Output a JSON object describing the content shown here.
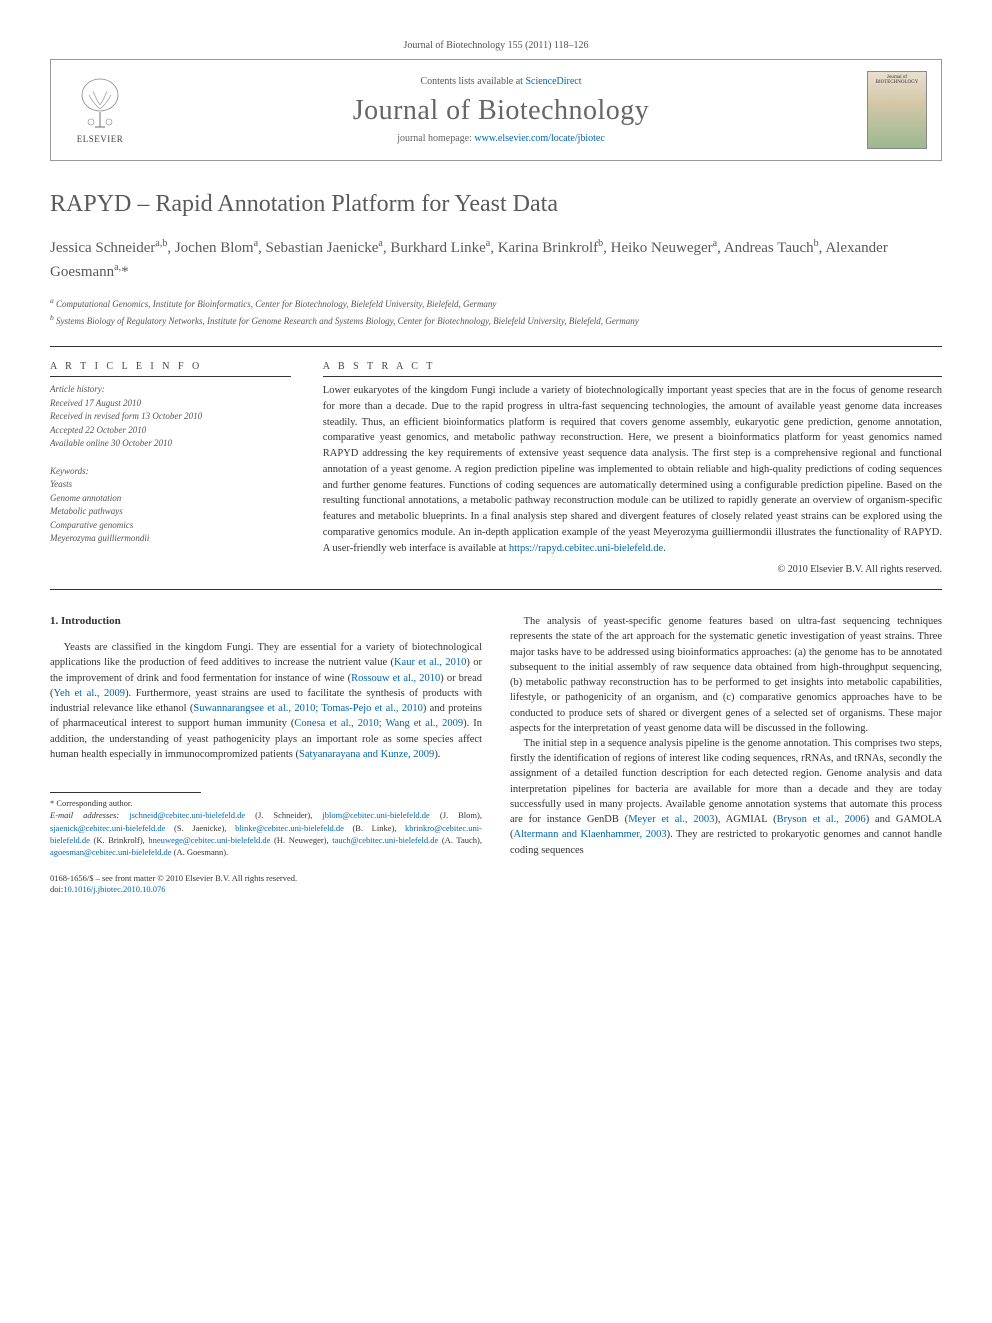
{
  "header": {
    "citation": "Journal of Biotechnology 155 (2011) 118–126",
    "contents_prefix": "Contents lists available at ",
    "contents_link_text": "ScienceDirect",
    "journal_name": "Journal of Biotechnology",
    "homepage_prefix": "journal homepage: ",
    "homepage_url": "www.elsevier.com/locate/jbiotec",
    "elsevier_label": "ELSEVIER",
    "cover_text": "Journal of BIOTECHNOLOGY"
  },
  "article": {
    "title": "RAPYD – Rapid Annotation Platform for Yeast Data",
    "authors_html": "Jessica Schneider<sup>a,b</sup>, Jochen Blom<sup>a</sup>, Sebastian Jaenicke<sup>a</sup>, Burkhard Linke<sup>a</sup>, Karina Brinkrolf<sup>b</sup>, Heiko Neuweger<sup>a</sup>, Andreas Tauch<sup>b</sup>, Alexander Goesmann<sup>a,</sup>*",
    "affiliations": {
      "a": "Computational Genomics, Institute for Bioinformatics, Center for Biotechnology, Bielefeld University, Bielefeld, Germany",
      "b": "Systems Biology of Regulatory Networks, Institute for Genome Research and Systems Biology, Center for Biotechnology, Bielefeld University, Bielefeld, Germany"
    }
  },
  "info": {
    "label": "A R T I C L E   I N F O",
    "history_label": "Article history:",
    "received": "Received 17 August 2010",
    "revised": "Received in revised form 13 October 2010",
    "accepted": "Accepted 22 October 2010",
    "online": "Available online 30 October 2010",
    "keywords_label": "Keywords:",
    "keywords": [
      "Yeasts",
      "Genome annotation",
      "Metabolic pathways",
      "Comparative genomics",
      "Meyerozyma guilliermondii"
    ]
  },
  "abstract": {
    "label": "A B S T R A C T",
    "text": "Lower eukaryotes of the kingdom Fungi include a variety of biotechnologically important yeast species that are in the focus of genome research for more than a decade. Due to the rapid progress in ultra-fast sequencing technologies, the amount of available yeast genome data increases steadily. Thus, an efficient bioinformatics platform is required that covers genome assembly, eukaryotic gene prediction, genome annotation, comparative yeast genomics, and metabolic pathway reconstruction. Here, we present a bioinformatics platform for yeast genomics named RAPYD addressing the key requirements of extensive yeast sequence data analysis. The first step is a comprehensive regional and functional annotation of a yeast genome. A region prediction pipeline was implemented to obtain reliable and high-quality predictions of coding sequences and further genome features. Functions of coding sequences are automatically determined using a configurable prediction pipeline. Based on the resulting functional annotations, a metabolic pathway reconstruction module can be utilized to rapidly generate an overview of organism-specific features and metabolic blueprints. In a final analysis step shared and divergent features of closely related yeast strains can be explored using the comparative genomics module. An in-depth application example of the yeast Meyerozyma guilliermondii illustrates the functionality of RAPYD. A user-friendly web interface is available at ",
    "url": "https://rapyd.cebitec.uni-bielefeld.de",
    "copyright": "© 2010 Elsevier B.V. All rights reserved."
  },
  "body": {
    "section1_heading": "1. Introduction",
    "col1_p1_a": "Yeasts are classified in the kingdom Fungi. They are essential for a variety of biotechnological applications like the production of feed additives to increase the nutrient value (",
    "col1_p1_ref1": "Kaur et al., 2010",
    "col1_p1_b": ") or the improvement of drink and food fermentation for instance of wine (",
    "col1_p1_ref2": "Rossouw et al., 2010",
    "col1_p1_c": ") or bread (",
    "col1_p1_ref3": "Yeh et al., 2009",
    "col1_p1_d": "). Furthermore, yeast strains are used to facilitate the synthesis of products with industrial relevance like ethanol (",
    "col1_p1_ref4": "Suwannarangsee et al., 2010; Tomas-Pejo et al., 2010",
    "col1_p1_e": ") and proteins of pharmaceutical interest to support human immunity (",
    "col1_p1_ref5": "Conesa et al., 2010; Wang et al., 2009",
    "col1_p1_f": "). In addition, the understanding of yeast pathogenicity plays an important role as some species affect human health especially in immunocompromized patients (",
    "col1_p1_ref6": "Satyanarayana and Kunze, 2009",
    "col1_p1_g": ").",
    "col2_p1": "The analysis of yeast-specific genome features based on ultra-fast sequencing techniques represents the state of the art approach for the systematic genetic investigation of yeast strains. Three major tasks have to be addressed using bioinformatics approaches: (a) the genome has to be annotated subsequent to the initial assembly of raw sequence data obtained from high-throughput sequencing, (b) metabolic pathway reconstruction has to be performed to get insights into metabolic capabilities, lifestyle, or pathogenicity of an organism, and (c) comparative genomics approaches have to be conducted to produce sets of shared or divergent genes of a selected set of organisms. These major aspects for the interpretation of yeast genome data will be discussed in the following.",
    "col2_p2_a": "The initial step in a sequence analysis pipeline is the genome annotation. This comprises two steps, firstly the identification of regions of interest like coding sequences, rRNAs, and tRNAs, secondly the assignment of a detailed function description for each detected region. Genome analysis and data interpretation pipelines for bacteria are available for more than a decade and they are today successfully used in many projects. Available genome annotation systems that automate this process are for instance GenDB (",
    "col2_p2_ref1": "Meyer et al., 2003",
    "col2_p2_b": "), AGMIAL (",
    "col2_p2_ref2": "Bryson et al., 2006",
    "col2_p2_c": ") and GAMOLA (",
    "col2_p2_ref3": "Altermann and Klaenhammer, 2003",
    "col2_p2_d": "). They are restricted to prokaryotic genomes and cannot handle coding sequences"
  },
  "footnotes": {
    "corresponding": "* Corresponding author.",
    "email_label": "E-mail addresses: ",
    "emails": [
      {
        "addr": "jschneid@cebitec.uni-bielefeld.de",
        "name": "(J. Schneider)"
      },
      {
        "addr": "jblom@cebitec.uni-bielefeld.de",
        "name": "(J. Blom)"
      },
      {
        "addr": "sjaenick@cebitec.uni-bielefeld.de",
        "name": "(S. Jaenicke)"
      },
      {
        "addr": "blinke@cebitec.uni-bielefeld.de",
        "name": "(B. Linke)"
      },
      {
        "addr": "kbrinkro@cebitec.uni-bielefeld.de",
        "name": "(K. Brinkrolf)"
      },
      {
        "addr": "hneuwege@cebitec.uni-bielefeld.de",
        "name": "(H. Neuweger)"
      },
      {
        "addr": "tauch@cebitec.uni-bielefeld.de",
        "name": "(A. Tauch)"
      },
      {
        "addr": "agoesman@cebitec.uni-bielefeld.de",
        "name": "(A. Goesmann)"
      }
    ]
  },
  "footer": {
    "line1": "0168-1656/$ – see front matter © 2010 Elsevier B.V. All rights reserved.",
    "doi_prefix": "doi:",
    "doi": "10.1016/j.jbiotec.2010.10.076"
  },
  "colors": {
    "link": "#0066aa",
    "text": "#333333",
    "muted": "#5a5a5a",
    "border": "#333333"
  }
}
